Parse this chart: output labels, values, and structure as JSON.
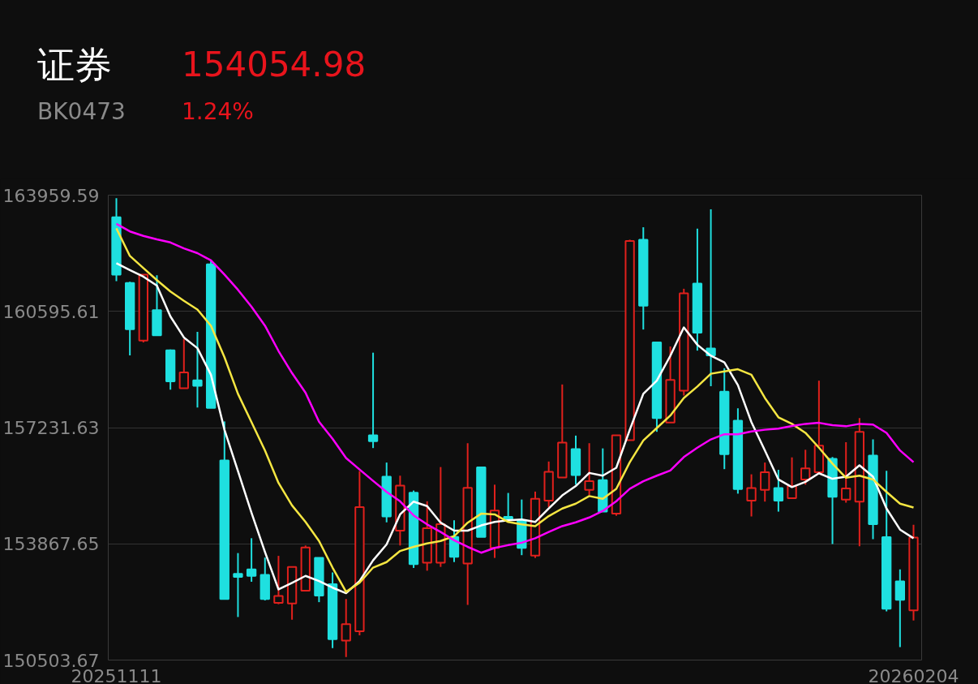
{
  "chart_data": {
    "type": "candlestick",
    "title": "证券",
    "subtitle": "BK0473",
    "annotations": [
      "154054.98",
      "1.24%"
    ],
    "categories": [
      "20251111",
      null,
      null,
      null,
      null,
      null,
      null,
      null,
      null,
      null,
      null,
      null,
      null,
      null,
      null,
      null,
      null,
      null,
      null,
      null,
      null,
      null,
      null,
      null,
      null,
      null,
      null,
      null,
      null,
      null,
      null,
      null,
      null,
      null,
      null,
      null,
      null,
      null,
      null,
      null,
      null,
      null,
      null,
      null,
      null,
      null,
      null,
      null,
      null,
      null,
      null,
      null,
      null,
      null,
      null,
      null,
      null,
      null,
      null,
      "20260204"
    ],
    "ohlc": [
      [
        163320,
        163870,
        161470,
        161660
      ],
      [
        161420,
        161450,
        159320,
        160080
      ],
      [
        159750,
        161660,
        159700,
        161660
      ],
      [
        160630,
        161640,
        159900,
        159900
      ],
      [
        159470,
        159490,
        158330,
        158570
      ],
      [
        158370,
        159790,
        158370,
        158830
      ],
      [
        158600,
        160000,
        157810,
        158440
      ],
      [
        161960,
        162090,
        157800,
        157800
      ],
      [
        156280,
        157410,
        152270,
        152270
      ],
      [
        153000,
        153600,
        151750,
        152910
      ],
      [
        153130,
        154030,
        152770,
        152940
      ],
      [
        152970,
        153470,
        152230,
        152270
      ],
      [
        152160,
        153520,
        152120,
        152360
      ],
      [
        152140,
        153200,
        151670,
        153200
      ],
      [
        152510,
        153820,
        152510,
        153760
      ],
      [
        153460,
        153460,
        152180,
        152370
      ],
      [
        152700,
        153040,
        150850,
        151110
      ],
      [
        151070,
        152270,
        150590,
        151540
      ],
      [
        151340,
        155970,
        151220,
        154930
      ],
      [
        157010,
        159400,
        156640,
        156840
      ],
      [
        155810,
        156220,
        154490,
        154660
      ],
      [
        154250,
        155840,
        153820,
        155550
      ],
      [
        155350,
        155410,
        153170,
        153280
      ],
      [
        153320,
        155100,
        153090,
        154320
      ],
      [
        153320,
        156090,
        153200,
        154440
      ],
      [
        154070,
        154550,
        153340,
        153490
      ],
      [
        153300,
        156780,
        152100,
        155490
      ],
      [
        156080,
        156080,
        154070,
        154070
      ],
      [
        153750,
        155580,
        153460,
        154830
      ],
      [
        154650,
        155340,
        154570,
        154570
      ],
      [
        154550,
        155150,
        153540,
        153750
      ],
      [
        153530,
        155380,
        153460,
        155170
      ],
      [
        155120,
        156250,
        154930,
        155950
      ],
      [
        155790,
        158480,
        155790,
        156800
      ],
      [
        156610,
        157000,
        155580,
        155860
      ],
      [
        155430,
        156780,
        155280,
        155680
      ],
      [
        155710,
        156630,
        154800,
        154800
      ],
      [
        154740,
        157010,
        154680,
        157010
      ],
      [
        156870,
        162670,
        156870,
        162630
      ],
      [
        162670,
        163030,
        160070,
        160760
      ],
      [
        159700,
        159720,
        157110,
        157510
      ],
      [
        157380,
        159580,
        157380,
        158610
      ],
      [
        158300,
        161250,
        158160,
        161120
      ],
      [
        161400,
        162990,
        159460,
        159980
      ],
      [
        159520,
        163550,
        158430,
        159320
      ],
      [
        158270,
        158950,
        156030,
        156460
      ],
      [
        157430,
        157790,
        155320,
        155450
      ],
      [
        155120,
        155880,
        154660,
        155480
      ],
      [
        155430,
        156220,
        155090,
        155940
      ],
      [
        155480,
        156010,
        154800,
        155120
      ],
      [
        155190,
        156370,
        155190,
        155540
      ],
      [
        155730,
        156590,
        155580,
        156050
      ],
      [
        155940,
        158590,
        155940,
        156710
      ],
      [
        156330,
        156380,
        153860,
        155230
      ],
      [
        155150,
        156810,
        155060,
        155470
      ],
      [
        155090,
        157510,
        153800,
        157110
      ],
      [
        156420,
        156890,
        154000,
        154440
      ],
      [
        154060,
        155980,
        151910,
        151990
      ],
      [
        152780,
        153130,
        150880,
        152250
      ],
      [
        151940,
        154420,
        151650,
        154050
      ]
    ],
    "colors": [
      "#1fe0e0",
      "#1fe0e0",
      "#e0201c",
      "#1fe0e0",
      "#1fe0e0",
      "#e0201c",
      "#1fe0e0",
      "#1fe0e0",
      "#1fe0e0",
      "#1fe0e0",
      "#1fe0e0",
      "#1fe0e0",
      "#e0201c",
      "#e0201c",
      "#e0201c",
      "#1fe0e0",
      "#1fe0e0",
      "#e0201c",
      "#e0201c",
      "#1fe0e0",
      "#1fe0e0",
      "#e0201c",
      "#1fe0e0",
      "#e0201c",
      "#e0201c",
      "#1fe0e0",
      "#e0201c",
      "#1fe0e0",
      "#e0201c",
      "#1fe0e0",
      "#1fe0e0",
      "#e0201c",
      "#e0201c",
      "#e0201c",
      "#1fe0e0",
      "#e0201c",
      "#1fe0e0",
      "#e0201c",
      "#e0201c",
      "#1fe0e0",
      "#1fe0e0",
      "#e0201c",
      "#e0201c",
      "#1fe0e0",
      "#1fe0e0",
      "#1fe0e0",
      "#1fe0e0",
      "#e0201c",
      "#e0201c",
      "#1fe0e0",
      "#e0201c",
      "#e0201c",
      "#e0201c",
      "#1fe0e0",
      "#e0201c",
      "#e0201c",
      "#1fe0e0",
      "#1fe0e0",
      "#1fe0e0",
      "#e0201c"
    ],
    "series": [
      {
        "type": "line",
        "color": "#ffffff",
        "values": [
          161990,
          161790,
          161600,
          161340,
          160450,
          159840,
          159530,
          158760,
          157170,
          155970,
          154770,
          153630,
          152550,
          152740,
          152940,
          152790,
          152600,
          152440,
          152790,
          153390,
          153850,
          154720,
          155090,
          154960,
          154480,
          154250,
          154250,
          154400,
          154500,
          154550,
          154570,
          154500,
          154890,
          155270,
          155540,
          155920,
          155840,
          156070,
          157170,
          158210,
          158590,
          159310,
          160130,
          159630,
          159310,
          159120,
          158460,
          157390,
          156570,
          155730,
          155510,
          155660,
          155910,
          155750,
          155810,
          156140,
          155810,
          154890,
          154280,
          154030
        ]
      },
      {
        "type": "line",
        "color": "#f5e642",
        "values": [
          163000,
          162200,
          161850,
          161500,
          161170,
          160900,
          160650,
          160180,
          159270,
          158210,
          157390,
          156570,
          155630,
          154980,
          154500,
          153950,
          153180,
          152480,
          152740,
          153180,
          153340,
          153660,
          153780,
          153880,
          153950,
          154090,
          154480,
          154740,
          154720,
          154500,
          154430,
          154380,
          154670,
          154890,
          155030,
          155250,
          155170,
          155460,
          156230,
          156860,
          157220,
          157580,
          158090,
          158420,
          158790,
          158860,
          158920,
          158760,
          158090,
          157530,
          157340,
          157080,
          156650,
          156190,
          155780,
          155840,
          155730,
          155370,
          155030,
          154920
        ]
      },
      {
        "type": "line",
        "color": "#ff00ff",
        "values": [
          163130,
          162910,
          162780,
          162680,
          162590,
          162420,
          162280,
          162070,
          161660,
          161220,
          160730,
          160180,
          159450,
          158810,
          158240,
          157400,
          156910,
          156350,
          156020,
          155690,
          155370,
          155100,
          154690,
          154430,
          154210,
          153970,
          153780,
          153610,
          153750,
          153830,
          153900,
          154030,
          154210,
          154380,
          154490,
          154630,
          154820,
          155100,
          155460,
          155680,
          155840,
          155990,
          156380,
          156650,
          156890,
          157040,
          157040,
          157120,
          157170,
          157200,
          157280,
          157340,
          157370,
          157300,
          157270,
          157340,
          157320,
          157080,
          156570,
          156230
        ]
      }
    ],
    "ylim": [
      150503.67,
      163959.59
    ],
    "yticks": [
      150503.67,
      153867.65,
      157231.63,
      160595.61,
      163959.59
    ],
    "grid": "y"
  }
}
